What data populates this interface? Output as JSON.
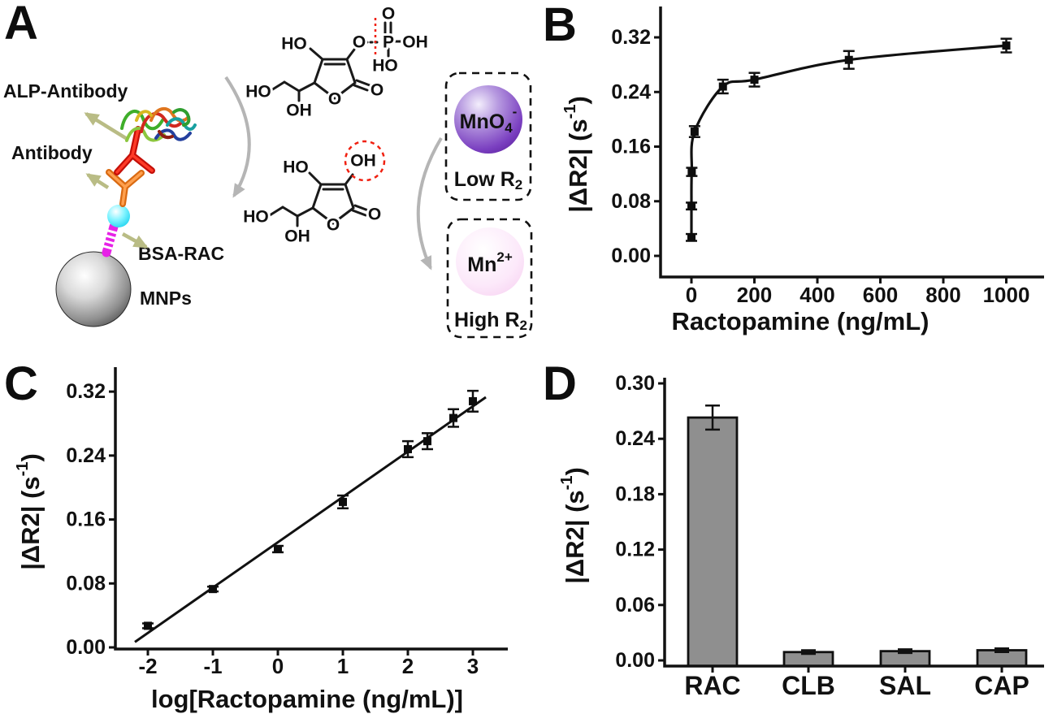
{
  "panelA": {
    "panel_label": "A",
    "labels": {
      "alp_antibody": "ALP-Antibody",
      "antibody": "Antibody",
      "bsa_rac": "BSA-RAC",
      "mnps": "MNPs"
    },
    "mno4": {
      "main": "MnO",
      "sub": "4",
      "sup": "-",
      "caption_main": "Low R",
      "caption_sub": "2"
    },
    "mn2": {
      "main": "Mn",
      "sup": "2+",
      "caption_main": "High R",
      "caption_sub": "2"
    },
    "molecule_top": {
      "ho_enol": "HO",
      "o_ester": "O",
      "p": "P",
      "o_double": "O",
      "oh_p": "OH",
      "ho_p": "HO",
      "ho_chain": "HO",
      "oh_chain": "OH",
      "o_ring": "O",
      "o_keto": "O"
    },
    "molecule_bottom": {
      "ho_enol": "HO",
      "oh_circled": "OH",
      "ho_chain": "HO",
      "oh_chain": "OH",
      "o_ring": "O",
      "o_keto": "O"
    },
    "colors": {
      "mno4_sphere": "#6a2fb8",
      "mn2_sphere": "#f8d4f2",
      "arrow_olive": "#b9bc85",
      "arrow_gray": "#b5b5b5",
      "highlight_red": "#f02010",
      "antibody_red": "#e01208",
      "antibody_orange": "#f08030",
      "hapten_cyan": "#35e5f8",
      "linker_magenta": "#e722e7",
      "mnp_gray": "#8f8f8f"
    }
  },
  "chart_data": [
    {
      "panel": "B",
      "type": "line",
      "xlabel": "Ractopamine (ng/mL)",
      "ylabel": "|ΔR2| (s-1)",
      "ylabel_parts": {
        "pre": "|ΔR2| (s",
        "sup": "-1",
        "post": ")"
      },
      "x": [
        0.01,
        0.1,
        1,
        10,
        100,
        200,
        500,
        1000
      ],
      "y": [
        0.027,
        0.073,
        0.123,
        0.182,
        0.248,
        0.258,
        0.287,
        0.308
      ],
      "yerr": [
        0.005,
        0.005,
        0.006,
        0.008,
        0.01,
        0.01,
        0.013,
        0.01
      ],
      "xticks": [
        "0",
        "200",
        "400",
        "600",
        "800",
        "1000"
      ],
      "yticks": [
        "0.00",
        "0.08",
        "0.16",
        "0.24",
        "0.32"
      ],
      "xlim": [
        -100,
        1120
      ],
      "ylim": [
        0,
        0.365
      ],
      "marker": "square",
      "line": "smooth",
      "grid": false
    },
    {
      "panel": "C",
      "type": "scatter",
      "xlabel": "log[Ractopamine (ng/mL)]",
      "ylabel": "|ΔR2| (s-1)",
      "ylabel_parts": {
        "pre": "|ΔR2| (s",
        "sup": "-1",
        "post": ")"
      },
      "x": [
        -2,
        -1,
        0,
        1,
        2,
        2.3,
        2.7,
        3
      ],
      "y": [
        0.027,
        0.073,
        0.123,
        0.182,
        0.248,
        0.258,
        0.287,
        0.308
      ],
      "yerr": [
        0.003,
        0.003,
        0.004,
        0.008,
        0.01,
        0.01,
        0.011,
        0.013
      ],
      "xticks": [
        "-2",
        "-1",
        "0",
        "1",
        "2",
        "3"
      ],
      "yticks": [
        "0.00",
        "0.08",
        "0.16",
        "0.24",
        "0.32"
      ],
      "xlim": [
        -2.6,
        3.5
      ],
      "ylim": [
        0,
        0.36
      ],
      "fit": {
        "type": "linear",
        "x_start": -2.2,
        "x_end": 3.2
      },
      "marker": "square",
      "grid": false
    },
    {
      "panel": "D",
      "type": "bar",
      "ylabel": "|ΔR2| (s-1)",
      "ylabel_parts": {
        "pre": "|ΔR2| (s",
        "sup": "-1",
        "post": ")"
      },
      "categories": [
        "RAC",
        "CLB",
        "SAL",
        "CAP"
      ],
      "values": [
        0.263,
        0.009,
        0.01,
        0.011
      ],
      "errors": [
        0.013,
        0.002,
        0.002,
        0.002
      ],
      "yticks": [
        "0.00",
        "0.06",
        "0.12",
        "0.18",
        "0.24",
        "0.30"
      ],
      "ylim": [
        0,
        0.3
      ],
      "bar_color": "#8f8f8f",
      "grid": false
    }
  ]
}
